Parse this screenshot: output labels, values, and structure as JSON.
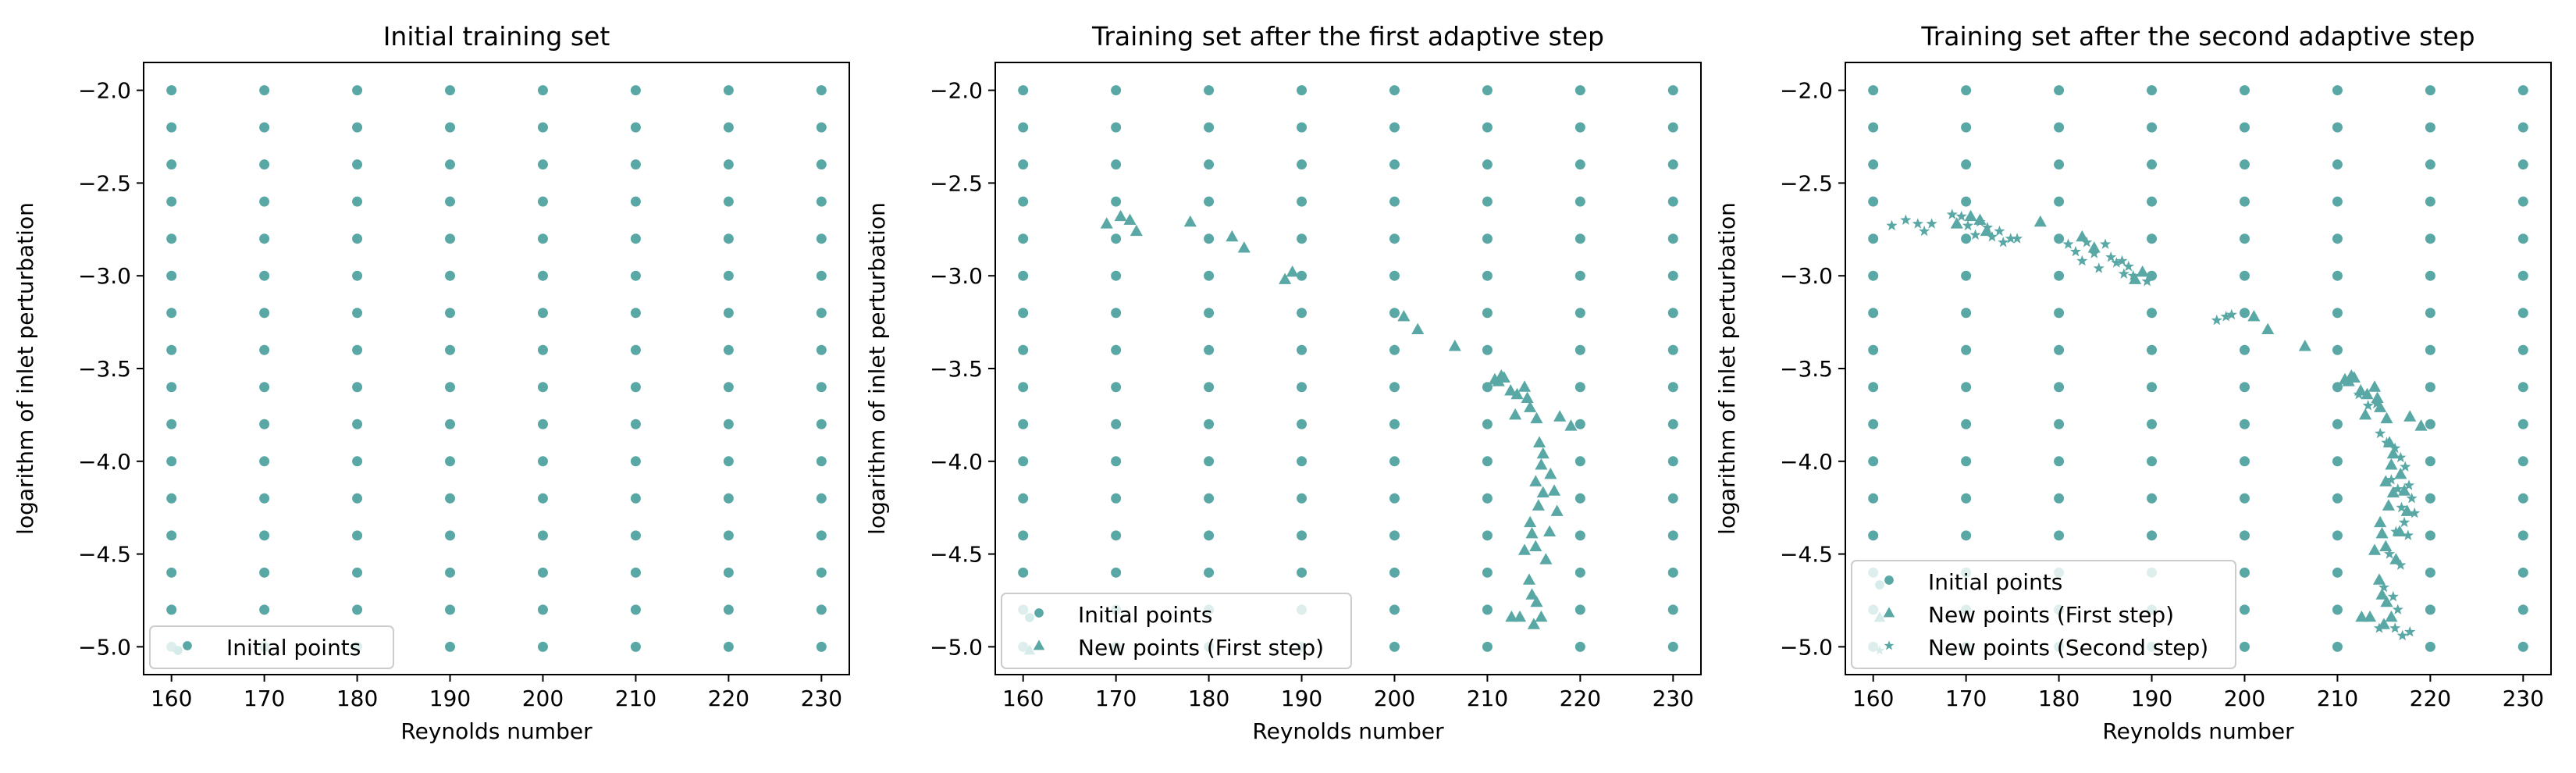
{
  "figure": {
    "marker_color": "#5aa8a5",
    "legend_face_color": "#d6ecea"
  },
  "chart_data": [
    {
      "type": "scatter",
      "title": "Initial training set",
      "xlabel": "Reynolds number",
      "ylabel": "logarithm of inlet perturbation",
      "xlim": [
        157,
        233
      ],
      "ylim": [
        -5.15,
        -1.85
      ],
      "xticks": [
        160,
        170,
        180,
        190,
        200,
        210,
        220,
        230
      ],
      "xtick_labels": [
        "160",
        "170",
        "180",
        "190",
        "200",
        "210",
        "220",
        "230"
      ],
      "yticks": [
        -2.0,
        -2.5,
        -3.0,
        -3.5,
        -4.0,
        -4.5,
        -5.0
      ],
      "ytick_labels": [
        "−2.0",
        "−2.5",
        "−3.0",
        "−3.5",
        "−4.0",
        "−4.5",
        "−5.0"
      ],
      "legend_position": "lower-left",
      "legend": [
        "Initial points"
      ],
      "grid": false,
      "series": [
        {
          "name": "Initial points",
          "marker": "circle",
          "grid_x": [
            160,
            170,
            180,
            190,
            200,
            210,
            220,
            230
          ],
          "grid_y": [
            -2.0,
            -2.2,
            -2.4,
            -2.6,
            -2.8,
            -3.0,
            -3.2,
            -3.4,
            -3.6,
            -3.8,
            -4.0,
            -4.2,
            -4.4,
            -4.6,
            -4.8,
            -5.0
          ]
        }
      ]
    },
    {
      "type": "scatter",
      "title": "Training set after the first adaptive step",
      "xlabel": "Reynolds number",
      "ylabel": "logarithm of inlet perturbation",
      "xlim": [
        157,
        233
      ],
      "ylim": [
        -5.15,
        -1.85
      ],
      "xticks": [
        160,
        170,
        180,
        190,
        200,
        210,
        220,
        230
      ],
      "xtick_labels": [
        "160",
        "170",
        "180",
        "190",
        "200",
        "210",
        "220",
        "230"
      ],
      "yticks": [
        -2.0,
        -2.5,
        -3.0,
        -3.5,
        -4.0,
        -4.5,
        -5.0
      ],
      "ytick_labels": [
        "−2.0",
        "−2.5",
        "−3.0",
        "−3.5",
        "−4.0",
        "−4.5",
        "−5.0"
      ],
      "legend_position": "lower-left",
      "legend": [
        "Initial points",
        "New points (First step)"
      ],
      "grid": false,
      "series": [
        {
          "name": "Initial points",
          "marker": "circle",
          "grid_x": [
            160,
            170,
            180,
            190,
            200,
            210,
            220,
            230
          ],
          "grid_y": [
            -2.0,
            -2.2,
            -2.4,
            -2.6,
            -2.8,
            -3.0,
            -3.2,
            -3.4,
            -3.6,
            -3.8,
            -4.0,
            -4.2,
            -4.4,
            -4.6,
            -4.8,
            -5.0
          ]
        },
        {
          "name": "New points (First step)",
          "marker": "triangle",
          "points": [
            [
              169.0,
              -2.72
            ],
            [
              170.5,
              -2.68
            ],
            [
              171.5,
              -2.7
            ],
            [
              172.2,
              -2.76
            ],
            [
              178.0,
              -2.71
            ],
            [
              182.5,
              -2.79
            ],
            [
              183.8,
              -2.85
            ],
            [
              188.2,
              -3.02
            ],
            [
              189.0,
              -2.98
            ],
            [
              201.0,
              -3.22
            ],
            [
              202.5,
              -3.29
            ],
            [
              206.5,
              -3.38
            ],
            [
              210.8,
              -3.56
            ],
            [
              211.2,
              -3.57
            ],
            [
              211.5,
              -3.54
            ],
            [
              211.8,
              -3.55
            ],
            [
              212.5,
              -3.62
            ],
            [
              213.2,
              -3.64
            ],
            [
              214.0,
              -3.6
            ],
            [
              214.3,
              -3.66
            ],
            [
              214.6,
              -3.71
            ],
            [
              215.3,
              -3.77
            ],
            [
              217.8,
              -3.76
            ],
            [
              219.0,
              -3.81
            ],
            [
              213.0,
              -3.75
            ],
            [
              215.6,
              -3.9
            ],
            [
              216.0,
              -3.96
            ],
            [
              215.8,
              -4.02
            ],
            [
              216.8,
              -4.07
            ],
            [
              215.2,
              -4.11
            ],
            [
              216.0,
              -4.17
            ],
            [
              217.2,
              -4.16
            ],
            [
              215.5,
              -4.24
            ],
            [
              214.6,
              -4.33
            ],
            [
              217.5,
              -4.27
            ],
            [
              214.8,
              -4.39
            ],
            [
              216.7,
              -4.38
            ],
            [
              215.2,
              -4.46
            ],
            [
              214.0,
              -4.48
            ],
            [
              216.3,
              -4.53
            ],
            [
              214.5,
              -4.64
            ],
            [
              214.8,
              -4.72
            ],
            [
              215.3,
              -4.76
            ],
            [
              212.6,
              -4.84
            ],
            [
              213.5,
              -4.84
            ],
            [
              215.0,
              -4.88
            ],
            [
              215.8,
              -4.84
            ]
          ]
        }
      ]
    },
    {
      "type": "scatter",
      "title": "Training set after the second adaptive step",
      "xlabel": "Reynolds number",
      "ylabel": "logarithm of inlet perturbation",
      "xlim": [
        157,
        233
      ],
      "ylim": [
        -5.15,
        -1.85
      ],
      "xticks": [
        160,
        170,
        180,
        190,
        200,
        210,
        220,
        230
      ],
      "xtick_labels": [
        "160",
        "170",
        "180",
        "190",
        "200",
        "210",
        "220",
        "230"
      ],
      "yticks": [
        -2.0,
        -2.5,
        -3.0,
        -3.5,
        -4.0,
        -4.5,
        -5.0
      ],
      "ytick_labels": [
        "−2.0",
        "−2.5",
        "−3.0",
        "−3.5",
        "−4.0",
        "−4.5",
        "−5.0"
      ],
      "legend_position": "lower-left",
      "legend": [
        "Initial points",
        "New points (First step)",
        "New points (Second step)"
      ],
      "grid": false,
      "series": [
        {
          "name": "Initial points",
          "marker": "circle",
          "grid_x": [
            160,
            170,
            180,
            190,
            200,
            210,
            220,
            230
          ],
          "grid_y": [
            -2.0,
            -2.2,
            -2.4,
            -2.6,
            -2.8,
            -3.0,
            -3.2,
            -3.4,
            -3.6,
            -3.8,
            -4.0,
            -4.2,
            -4.4,
            -4.6,
            -4.8,
            -5.0
          ]
        },
        {
          "name": "New points (First step)",
          "marker": "triangle",
          "points": [
            [
              169.0,
              -2.72
            ],
            [
              170.5,
              -2.68
            ],
            [
              171.5,
              -2.7
            ],
            [
              172.2,
              -2.76
            ],
            [
              178.0,
              -2.71
            ],
            [
              182.5,
              -2.79
            ],
            [
              183.8,
              -2.85
            ],
            [
              188.2,
              -3.02
            ],
            [
              189.0,
              -2.98
            ],
            [
              201.0,
              -3.22
            ],
            [
              202.5,
              -3.29
            ],
            [
              206.5,
              -3.38
            ],
            [
              210.8,
              -3.56
            ],
            [
              211.2,
              -3.57
            ],
            [
              211.5,
              -3.54
            ],
            [
              211.8,
              -3.55
            ],
            [
              212.5,
              -3.62
            ],
            [
              213.2,
              -3.64
            ],
            [
              214.0,
              -3.6
            ],
            [
              214.3,
              -3.66
            ],
            [
              214.6,
              -3.71
            ],
            [
              215.3,
              -3.77
            ],
            [
              217.8,
              -3.76
            ],
            [
              219.0,
              -3.81
            ],
            [
              213.0,
              -3.75
            ],
            [
              215.6,
              -3.9
            ],
            [
              216.0,
              -3.96
            ],
            [
              215.8,
              -4.02
            ],
            [
              216.8,
              -4.07
            ],
            [
              215.2,
              -4.11
            ],
            [
              216.0,
              -4.17
            ],
            [
              217.2,
              -4.16
            ],
            [
              215.5,
              -4.24
            ],
            [
              214.6,
              -4.33
            ],
            [
              217.5,
              -4.27
            ],
            [
              214.8,
              -4.39
            ],
            [
              216.7,
              -4.38
            ],
            [
              215.2,
              -4.46
            ],
            [
              214.0,
              -4.48
            ],
            [
              216.3,
              -4.53
            ],
            [
              214.5,
              -4.64
            ],
            [
              214.8,
              -4.72
            ],
            [
              215.3,
              -4.76
            ],
            [
              212.6,
              -4.84
            ],
            [
              213.5,
              -4.84
            ],
            [
              215.0,
              -4.88
            ],
            [
              215.8,
              -4.84
            ]
          ]
        },
        {
          "name": "New points (Second step)",
          "marker": "star",
          "points": [
            [
              162.0,
              -2.73
            ],
            [
              163.5,
              -2.7
            ],
            [
              164.8,
              -2.72
            ],
            [
              165.5,
              -2.76
            ],
            [
              166.3,
              -2.72
            ],
            [
              168.5,
              -2.67
            ],
            [
              169.5,
              -2.68
            ],
            [
              170.2,
              -2.73
            ],
            [
              171.0,
              -2.78
            ],
            [
              171.5,
              -2.71
            ],
            [
              172.3,
              -2.74
            ],
            [
              172.8,
              -2.79
            ],
            [
              173.6,
              -2.76
            ],
            [
              174.0,
              -2.82
            ],
            [
              174.8,
              -2.8
            ],
            [
              175.5,
              -2.8
            ],
            [
              181.0,
              -2.83
            ],
            [
              181.8,
              -2.87
            ],
            [
              182.5,
              -2.92
            ],
            [
              183.0,
              -2.82
            ],
            [
              183.8,
              -2.88
            ],
            [
              184.3,
              -2.96
            ],
            [
              185.0,
              -2.83
            ],
            [
              185.6,
              -2.9
            ],
            [
              186.2,
              -2.93
            ],
            [
              186.8,
              -2.92
            ],
            [
              187.5,
              -2.95
            ],
            [
              187.0,
              -2.99
            ],
            [
              188.0,
              -3.0
            ],
            [
              189.5,
              -3.03
            ],
            [
              197.0,
              -3.24
            ],
            [
              198.0,
              -3.22
            ],
            [
              198.6,
              -3.21
            ],
            [
              212.3,
              -3.64
            ],
            [
              213.3,
              -3.7
            ],
            [
              214.2,
              -3.69
            ],
            [
              214.6,
              -3.85
            ],
            [
              215.3,
              -3.9
            ],
            [
              216.2,
              -3.93
            ],
            [
              216.8,
              -3.98
            ],
            [
              217.3,
              -4.03
            ],
            [
              215.8,
              -4.1
            ],
            [
              216.5,
              -4.15
            ],
            [
              217.7,
              -4.13
            ],
            [
              218.0,
              -4.2
            ],
            [
              216.9,
              -4.25
            ],
            [
              218.3,
              -4.28
            ],
            [
              217.2,
              -4.33
            ],
            [
              216.3,
              -4.38
            ],
            [
              217.6,
              -4.4
            ],
            [
              215.6,
              -4.5
            ],
            [
              216.8,
              -4.56
            ],
            [
              215.0,
              -4.68
            ],
            [
              216.0,
              -4.73
            ],
            [
              216.5,
              -4.8
            ],
            [
              214.5,
              -4.9
            ],
            [
              216.2,
              -4.9
            ],
            [
              217.0,
              -4.94
            ],
            [
              217.8,
              -4.92
            ]
          ]
        }
      ]
    }
  ]
}
